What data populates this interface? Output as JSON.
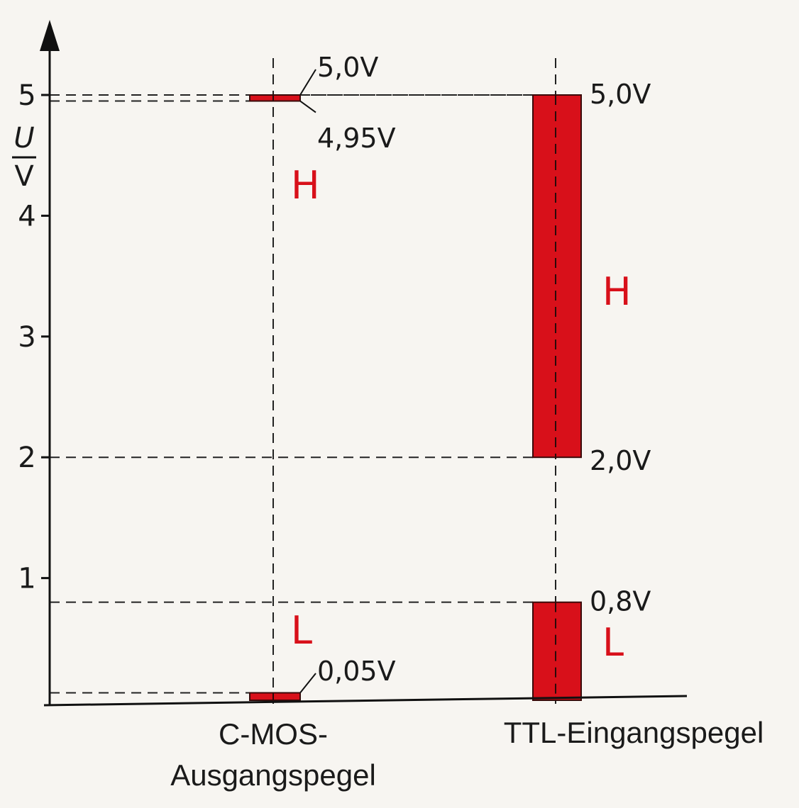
{
  "chart_data": {
    "type": "bar",
    "y_axis": {
      "unit_numerator": "U",
      "unit_denominator": "V",
      "ticks": [
        "1",
        "2",
        "3",
        "4",
        "5"
      ],
      "ylim": [
        0,
        5.3
      ]
    },
    "categories": [
      {
        "label_lines": [
          "C-MOS-",
          "Ausgangspegel"
        ],
        "ranges": [
          {
            "level": "H",
            "low": 4.95,
            "high": 5.0,
            "high_label": "5,0V",
            "low_label": "4,95V"
          },
          {
            "level": "L",
            "low": 0.0,
            "high": 0.05,
            "high_label": "0,05V"
          }
        ]
      },
      {
        "label_lines": [
          "TTL-Eingangspegel"
        ],
        "ranges": [
          {
            "level": "H",
            "low": 2.0,
            "high": 5.0,
            "high_label": "5,0V",
            "low_label": "2,0V"
          },
          {
            "level": "L",
            "low": 0.0,
            "high": 0.8,
            "high_label": "0,8V"
          }
        ]
      }
    ],
    "colors": {
      "bar": "#d8101a",
      "letter": "#d8101a",
      "axis": "#111111"
    }
  }
}
